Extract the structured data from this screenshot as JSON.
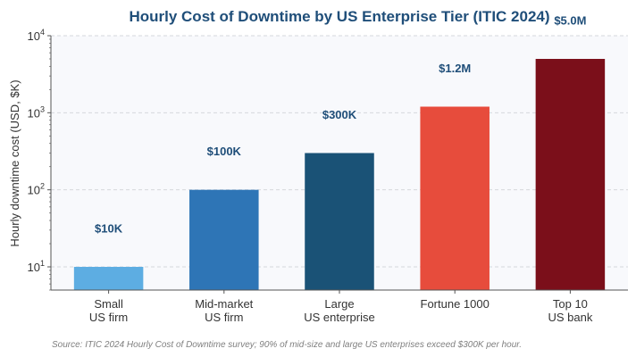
{
  "chart_data": {
    "type": "bar",
    "title": "Hourly Cost of Downtime by US Enterprise Tier (ITIC 2024)",
    "ylabel": "Hourly downtime cost (USD, $K)",
    "xlabel": "",
    "yscale": "log",
    "ylim": [
      5,
      10000
    ],
    "yticks": [
      {
        "base": "10",
        "exp": "1",
        "value": 10
      },
      {
        "base": "10",
        "exp": "2",
        "value": 100
      },
      {
        "base": "10",
        "exp": "3",
        "value": 1000
      },
      {
        "base": "10",
        "exp": "4",
        "value": 10000
      }
    ],
    "grid": true,
    "categories": [
      [
        "Small",
        "US firm"
      ],
      [
        "Mid-market",
        "US firm"
      ],
      [
        "Large",
        "US enterprise"
      ],
      [
        "Fortune 1000"
      ],
      [
        "Top 10",
        "US bank"
      ]
    ],
    "values": [
      10,
      100,
      300,
      1200,
      5000
    ],
    "data_labels": [
      "$10K",
      "$100K",
      "$300K",
      "$1.2M",
      "$5.0M"
    ],
    "colors": [
      "#5dade2",
      "#2e75b6",
      "#1a5276",
      "#e74c3c",
      "#7b0f1a"
    ],
    "source": "Source: ITIC 2024 Hourly Cost of Downtime survey; 90% of mid-size and large US enterprises exceed $300K per hour."
  }
}
